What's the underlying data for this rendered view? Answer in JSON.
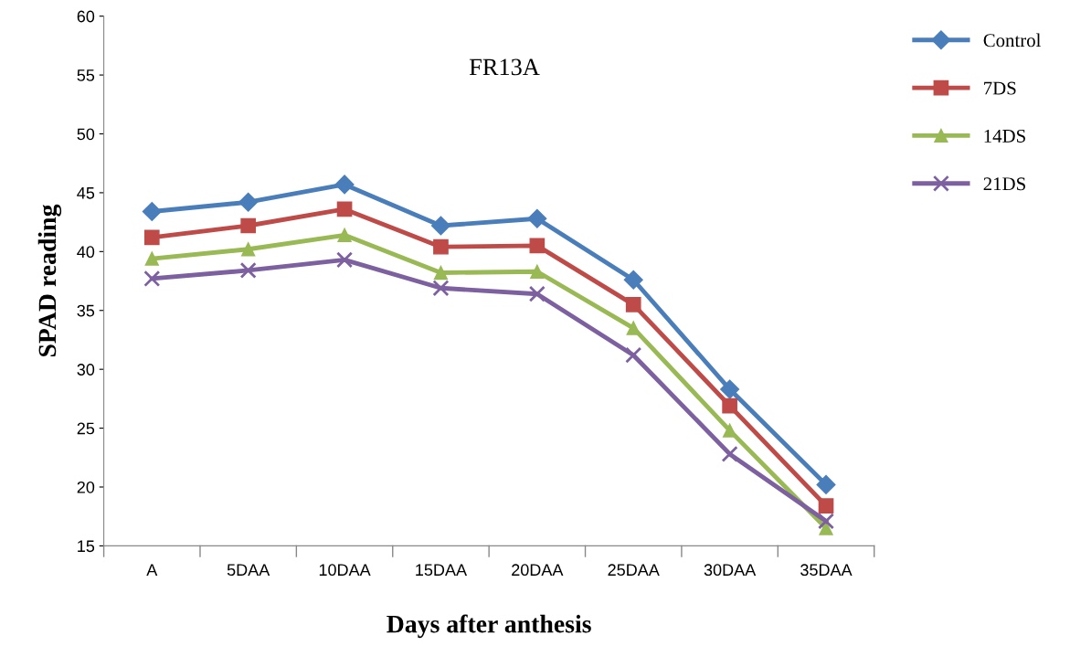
{
  "chart_data": {
    "type": "line",
    "title": "FR13A",
    "xlabel": "Days after anthesis",
    "ylabel": "SPAD reading",
    "categories": [
      "A",
      "5DAA",
      "10DAA",
      "15DAA",
      "20DAA",
      "25DAA",
      "30DAA",
      "35DAA"
    ],
    "ylim": [
      15,
      60
    ],
    "yticks": [
      15,
      20,
      25,
      30,
      35,
      40,
      45,
      50,
      55,
      60
    ],
    "grid": false,
    "legend": "right",
    "series": [
      {
        "name": "Control",
        "color": "#4a7ebb",
        "marker": "diamond",
        "values": [
          43.4,
          44.2,
          45.7,
          42.2,
          42.8,
          37.6,
          28.3,
          20.2
        ]
      },
      {
        "name": "7DS",
        "color": "#be4b48",
        "marker": "square",
        "values": [
          41.2,
          42.2,
          43.6,
          40.4,
          40.5,
          35.5,
          26.9,
          18.4
        ]
      },
      {
        "name": "14DS",
        "color": "#98b954",
        "marker": "triangle",
        "values": [
          39.4,
          40.2,
          41.4,
          38.2,
          38.3,
          33.5,
          24.8,
          16.5
        ]
      },
      {
        "name": "21DS",
        "color": "#7d60a0",
        "marker": "cross",
        "values": [
          37.7,
          38.4,
          39.3,
          36.9,
          36.4,
          31.2,
          22.8,
          17.1
        ]
      }
    ]
  }
}
